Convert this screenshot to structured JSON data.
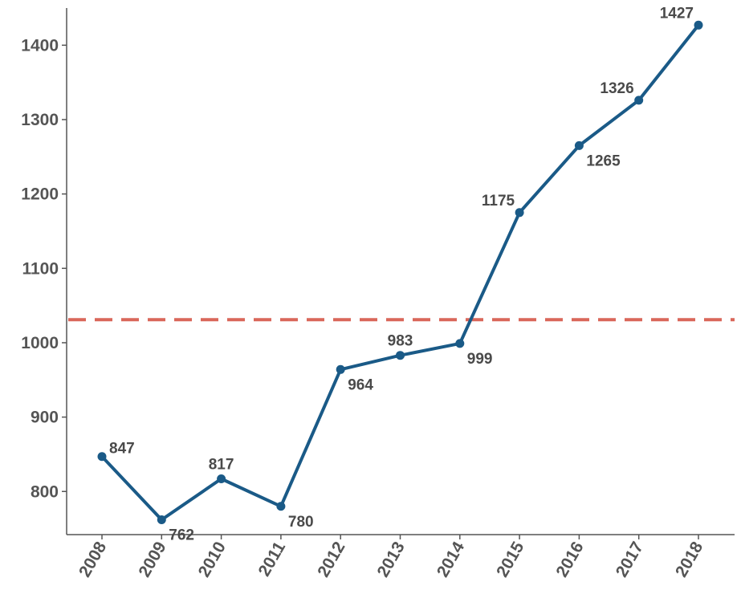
{
  "chart_data": {
    "type": "line",
    "title": "",
    "xlabel": "",
    "ylabel": "",
    "x": [
      "2008",
      "2009",
      "2010",
      "2011",
      "2012",
      "2013",
      "2014",
      "2015",
      "2016",
      "2017",
      "2018"
    ],
    "series": [
      {
        "values": [
          847,
          762,
          817,
          780,
          964,
          983,
          999,
          1175,
          1265,
          1326,
          1427
        ],
        "color": "#1a5a87"
      }
    ],
    "data_labels": [
      "847",
      "762",
      "817",
      "780",
      "964",
      "983",
      "999",
      "1175",
      "1265",
      "1326",
      "1427"
    ],
    "reference_line": {
      "value": 1031,
      "style": "dashed",
      "color": "#d9675a"
    },
    "ylim": [
      742,
      1450
    ],
    "yticks": [
      800,
      900,
      1000,
      1100,
      1200,
      1300,
      1400
    ],
    "ytick_labels": [
      "800",
      "900",
      "1000",
      "1100",
      "1200",
      "1300",
      "1400"
    ],
    "grid": false,
    "legend": "none"
  }
}
